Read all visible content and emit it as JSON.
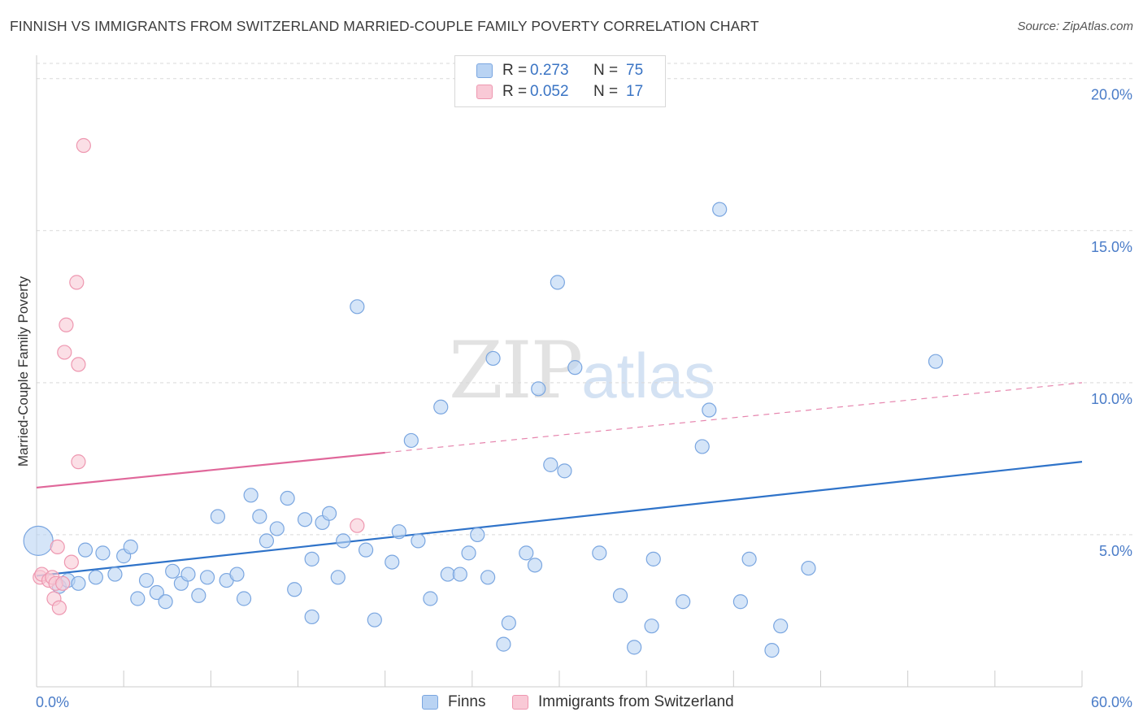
{
  "title": "FINNISH VS IMMIGRANTS FROM SWITZERLAND MARRIED-COUPLE FAMILY POVERTY CORRELATION CHART",
  "source": "Source: ZipAtlas.com",
  "watermark": {
    "zip": "ZIP",
    "atlas": "atlas"
  },
  "legend": {
    "finns": {
      "r_label": "R =",
      "r_value": "0.273",
      "n_label": "N =",
      "n_value": "75"
    },
    "swiss": {
      "r_label": "R =",
      "r_value": "0.052",
      "n_label": "N =",
      "n_value": "17"
    }
  },
  "bottom_legend": {
    "finns": "Finns",
    "swiss": "Immigrants from Switzerland"
  },
  "colors": {
    "finns_fill": "#b9d3f3",
    "finns_stroke": "#7aa6e0",
    "finns_line": "#2f73c9",
    "swiss_fill": "#f9c9d6",
    "swiss_stroke": "#ee97b0",
    "swiss_line": "#e0679a",
    "grid": "#d9d9d9",
    "tick_text": "#4a7cc8"
  },
  "chart_data": {
    "type": "scatter",
    "title": "FINNISH VS IMMIGRANTS FROM SWITZERLAND MARRIED-COUPLE FAMILY POVERTY CORRELATION CHART",
    "xlabel": "",
    "ylabel": "Married-Couple Family Poverty",
    "xlim": [
      0,
      60
    ],
    "ylim": [
      0,
      20.5
    ],
    "x_tick_labels": [
      "0.0%",
      "60.0%"
    ],
    "y_ticks": [
      5,
      10,
      15,
      20
    ],
    "y_tick_labels": [
      "5.0%",
      "10.0%",
      "15.0%",
      "20.0%"
    ],
    "grid": true,
    "series": [
      {
        "name": "Finns",
        "r": 0.273,
        "n": 75,
        "trend": {
          "x0": 0,
          "y0": 3.65,
          "x1": 60,
          "y1": 7.4
        },
        "points": [
          [
            0.1,
            4.8
          ],
          [
            1.3,
            3.3
          ],
          [
            1.8,
            3.5
          ],
          [
            2.4,
            3.4
          ],
          [
            2.8,
            4.5
          ],
          [
            3.4,
            3.6
          ],
          [
            3.8,
            4.4
          ],
          [
            4.5,
            3.7
          ],
          [
            5.0,
            4.3
          ],
          [
            5.4,
            4.6
          ],
          [
            5.8,
            2.9
          ],
          [
            6.3,
            3.5
          ],
          [
            6.9,
            3.1
          ],
          [
            7.4,
            2.8
          ],
          [
            7.8,
            3.8
          ],
          [
            8.3,
            3.4
          ],
          [
            8.7,
            3.7
          ],
          [
            9.3,
            3.0
          ],
          [
            9.8,
            3.6
          ],
          [
            10.4,
            5.6
          ],
          [
            10.9,
            3.5
          ],
          [
            11.5,
            3.7
          ],
          [
            11.9,
            2.9
          ],
          [
            12.3,
            6.3
          ],
          [
            12.8,
            5.6
          ],
          [
            13.2,
            4.8
          ],
          [
            13.8,
            5.2
          ],
          [
            14.4,
            6.2
          ],
          [
            14.8,
            3.2
          ],
          [
            15.4,
            5.5
          ],
          [
            15.8,
            2.3
          ],
          [
            16.4,
            5.4
          ],
          [
            16.8,
            5.7
          ],
          [
            17.3,
            3.6
          ],
          [
            17.6,
            4.8
          ],
          [
            18.4,
            12.5
          ],
          [
            18.9,
            4.5
          ],
          [
            19.4,
            2.2
          ],
          [
            20.4,
            4.1
          ],
          [
            20.8,
            5.1
          ],
          [
            21.5,
            8.1
          ],
          [
            21.9,
            4.8
          ],
          [
            22.6,
            2.9
          ],
          [
            23.2,
            9.2
          ],
          [
            23.6,
            3.7
          ],
          [
            24.3,
            3.7
          ],
          [
            24.8,
            4.4
          ],
          [
            25.3,
            5.0
          ],
          [
            25.9,
            3.6
          ],
          [
            26.2,
            10.8
          ],
          [
            26.8,
            1.4
          ],
          [
            27.1,
            2.1
          ],
          [
            28.1,
            4.4
          ],
          [
            28.6,
            4.0
          ],
          [
            28.8,
            9.8
          ],
          [
            29.5,
            7.3
          ],
          [
            29.9,
            13.3
          ],
          [
            30.3,
            7.1
          ],
          [
            30.9,
            10.5
          ],
          [
            32.3,
            4.4
          ],
          [
            33.5,
            3.0
          ],
          [
            34.3,
            1.3
          ],
          [
            35.3,
            2.0
          ],
          [
            37.1,
            2.8
          ],
          [
            38.2,
            7.9
          ],
          [
            38.6,
            9.1
          ],
          [
            39.2,
            15.7
          ],
          [
            40.4,
            2.8
          ],
          [
            40.9,
            4.2
          ],
          [
            42.2,
            1.2
          ],
          [
            42.7,
            2.0
          ],
          [
            44.3,
            3.9
          ],
          [
            51.6,
            10.7
          ],
          [
            35.4,
            4.2
          ],
          [
            15.8,
            4.2
          ]
        ]
      },
      {
        "name": "Immigrants from Switzerland",
        "r": 0.052,
        "n": 17,
        "trend": {
          "x0": 0,
          "y0": 6.55,
          "x1": 60,
          "y1": 10.0,
          "solid_until": 20
        },
        "points": [
          [
            0.2,
            3.6
          ],
          [
            0.3,
            3.7
          ],
          [
            0.7,
            3.5
          ],
          [
            0.9,
            3.6
          ],
          [
            1.0,
            2.9
          ],
          [
            1.1,
            3.4
          ],
          [
            1.2,
            4.6
          ],
          [
            1.3,
            2.6
          ],
          [
            1.5,
            3.4
          ],
          [
            1.6,
            11.0
          ],
          [
            1.7,
            11.9
          ],
          [
            2.0,
            4.1
          ],
          [
            2.3,
            13.3
          ],
          [
            2.4,
            7.4
          ],
          [
            2.4,
            10.6
          ],
          [
            2.7,
            17.8
          ],
          [
            18.4,
            5.3
          ]
        ]
      }
    ]
  }
}
